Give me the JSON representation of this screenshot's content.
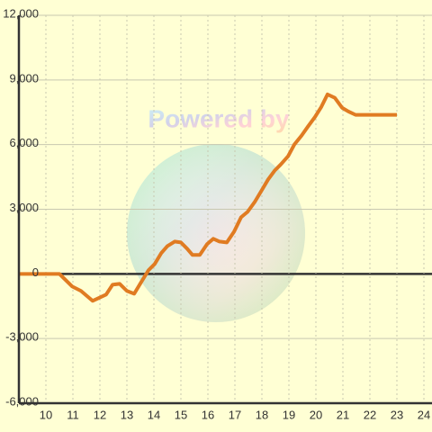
{
  "chart_data": {
    "type": "line",
    "watermark": "Powered by",
    "series": [
      {
        "color": "#e07b22",
        "x": [
          9,
          10.5,
          10.97,
          11.3,
          11.73,
          12.23,
          12.47,
          12.73,
          13,
          13.27,
          13.53,
          13.8,
          14.03,
          14.27,
          14.5,
          14.77,
          15,
          15.23,
          15.43,
          15.7,
          15.97,
          16.2,
          16.43,
          16.7,
          16.97,
          17.23,
          17.47,
          17.73,
          17.97,
          18.23,
          18.47,
          18.7,
          18.97,
          19.2,
          19.47,
          19.7,
          19.97,
          20.2,
          20.43,
          20.7,
          20.97,
          21.2,
          21.47,
          23
        ],
        "values": [
          0,
          0,
          -580,
          -790,
          -1250,
          -960,
          -500,
          -460,
          -790,
          -920,
          -380,
          170,
          460,
          960,
          1290,
          1500,
          1460,
          1170,
          880,
          880,
          1380,
          1630,
          1500,
          1460,
          1960,
          2630,
          2880,
          3330,
          3830,
          4380,
          4790,
          5080,
          5460,
          6000,
          6420,
          6830,
          7290,
          7750,
          8330,
          8170,
          7710,
          7540,
          7380,
          7380
        ]
      }
    ],
    "xlim": [
      9,
      24.3
    ],
    "xticks": [
      10,
      11,
      12,
      13,
      14,
      15,
      16,
      17,
      18,
      19,
      20,
      21,
      22,
      23,
      24
    ],
    "ylim": [
      -6000,
      12000
    ],
    "yticks": [
      {
        "value": -6000,
        "label": "-6,000"
      },
      {
        "value": -3000,
        "label": "-3,000"
      },
      0,
      {
        "value": 3000,
        "label": "3,000"
      },
      {
        "value": 6000,
        "label": "6,000"
      },
      {
        "value": 9000,
        "label": "9,000"
      },
      {
        "value": 12000,
        "label": "12,000"
      }
    ],
    "grid": true
  }
}
